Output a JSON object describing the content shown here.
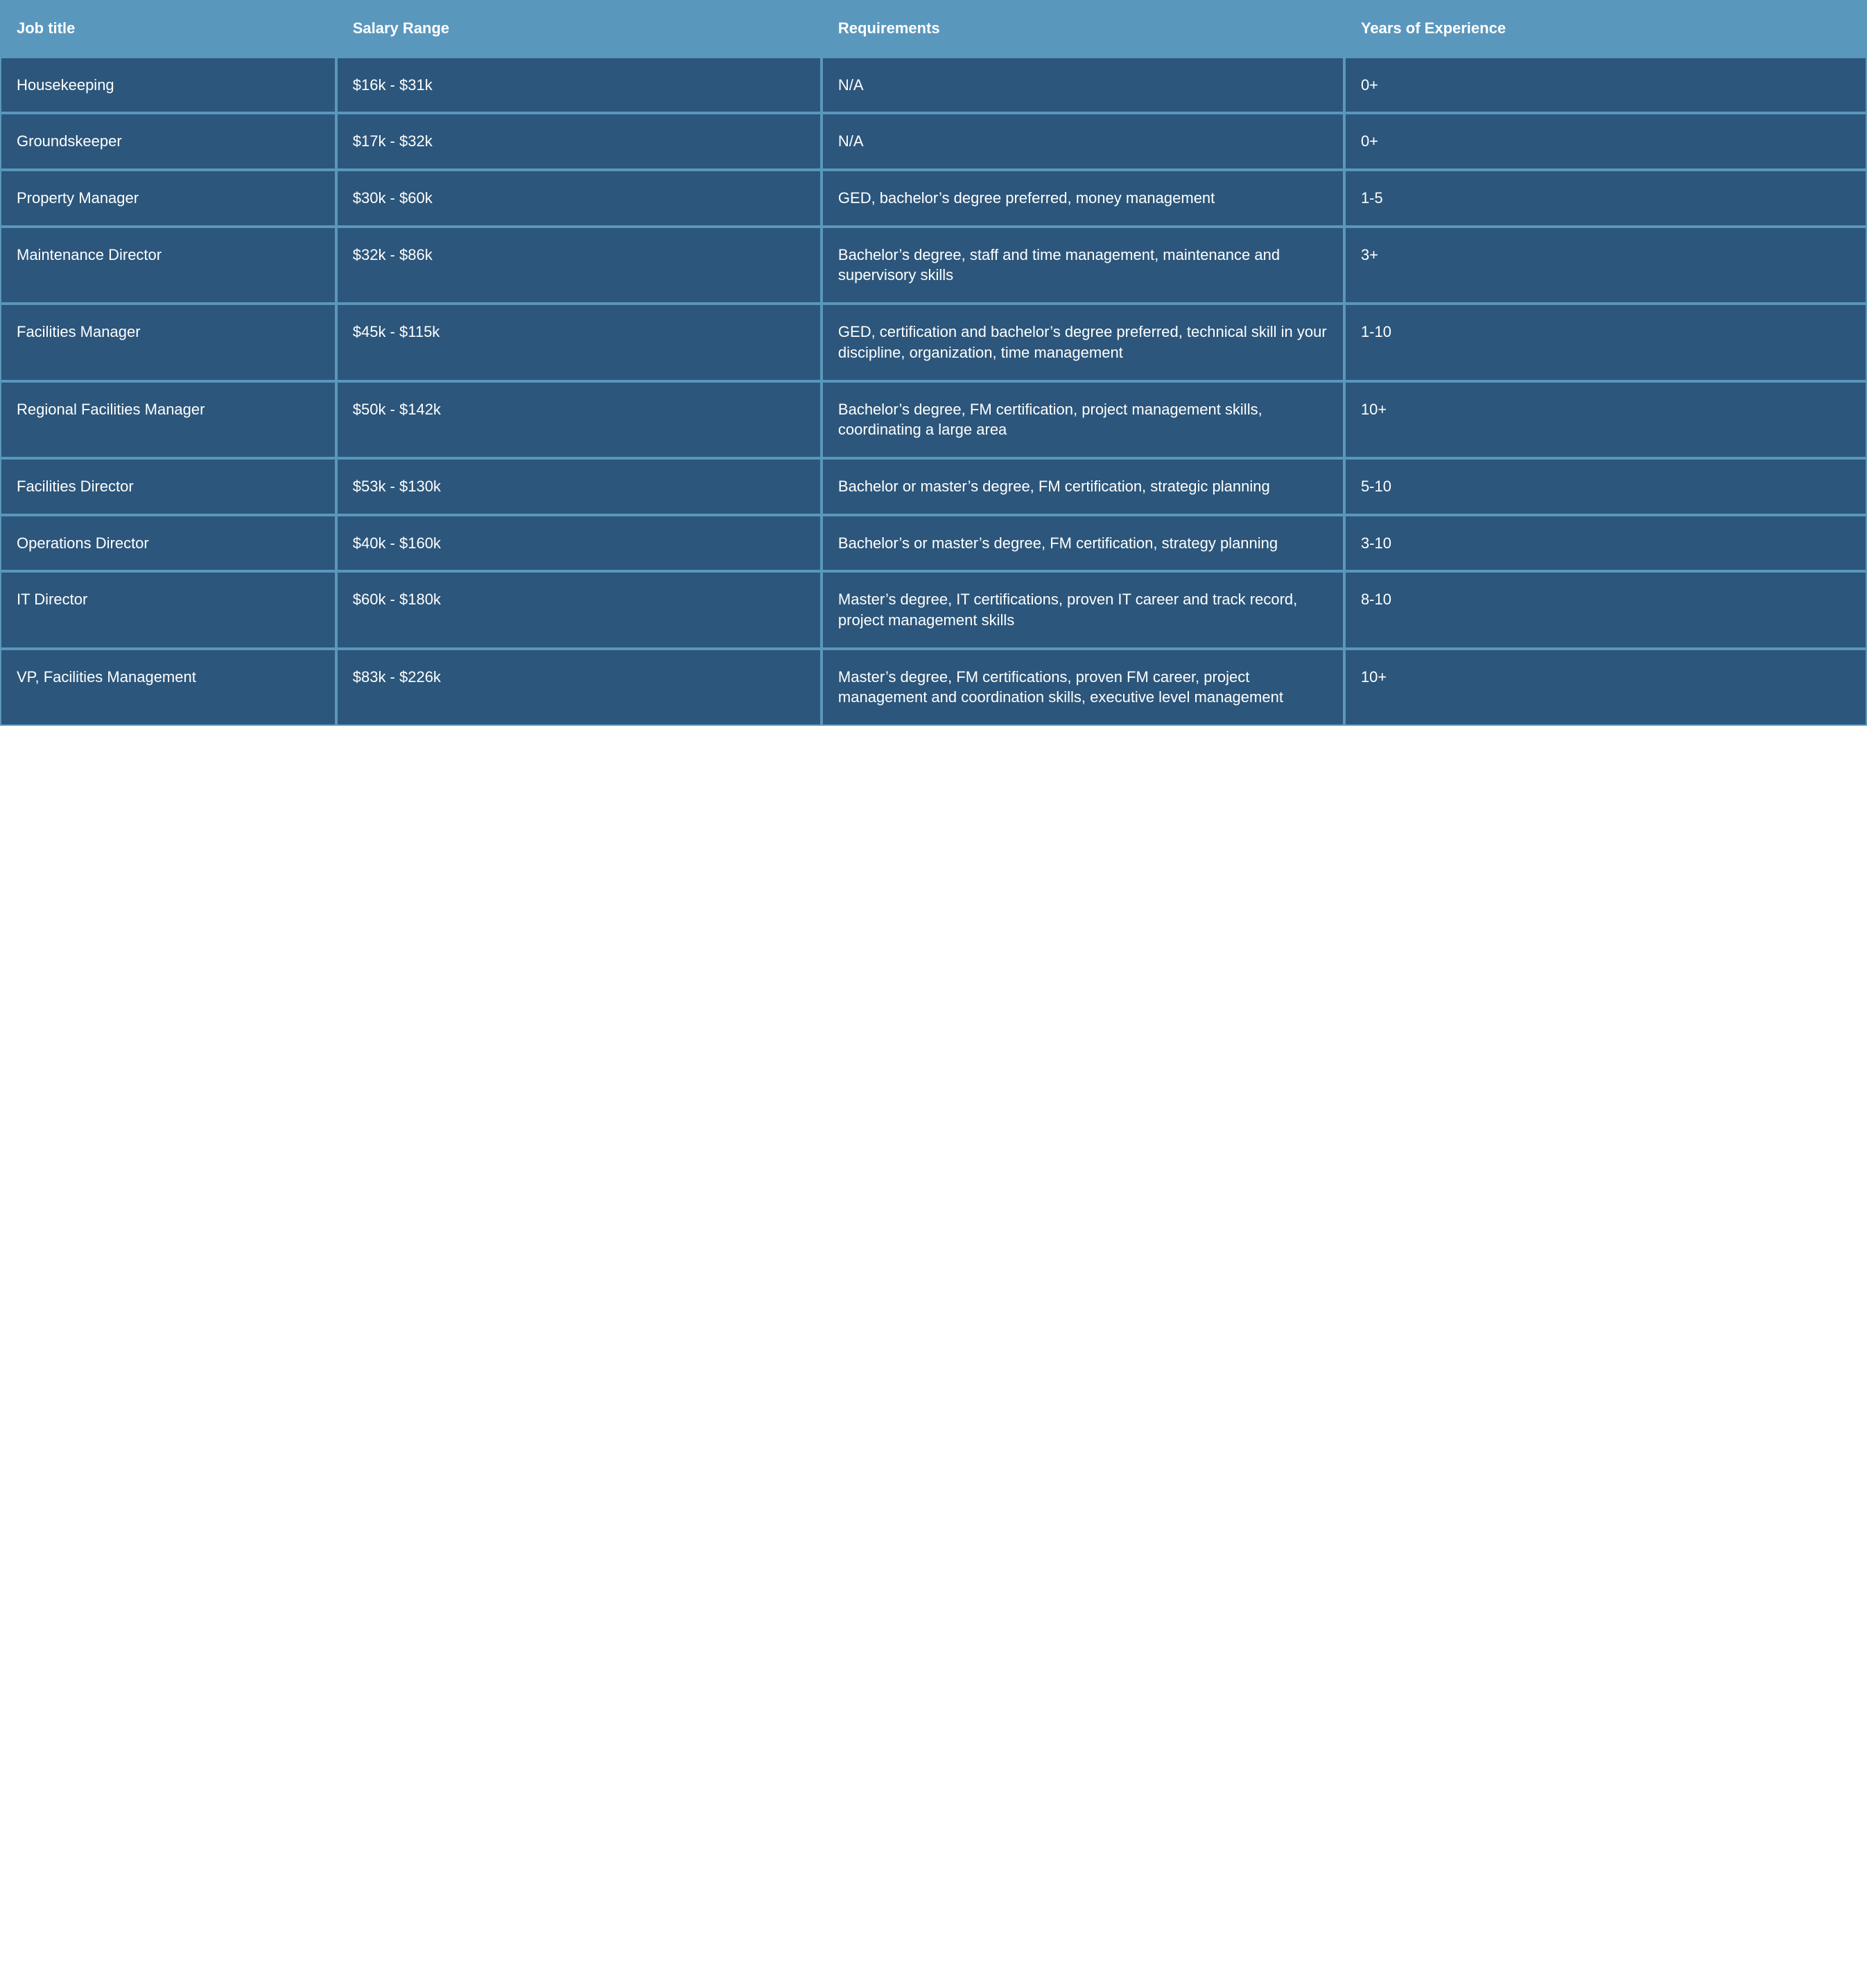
{
  "table": {
    "header_bg": "#5a97bd",
    "header_text_color": "#ffffff",
    "row_bg": "#2c567b",
    "row_text_color": "#ffffff",
    "border_color": "#5a97bd",
    "column_widths": [
      "18%",
      "26%",
      "28%",
      "28%"
    ],
    "columns": [
      "Job title",
      "Salary Range",
      "Requirements",
      "Years of Experience"
    ],
    "rows": [
      {
        "job_title": "Housekeeping",
        "salary_range": "$16k - $31k",
        "requirements": "N/A",
        "years": "0+"
      },
      {
        "job_title": "Groundskeeper",
        "salary_range": "$17k - $32k",
        "requirements": "N/A",
        "years": "0+"
      },
      {
        "job_title": "Property Manager",
        "salary_range": "$30k - $60k",
        "requirements": "GED, bachelor’s degree preferred, money management",
        "years": "1-5"
      },
      {
        "job_title": "Maintenance Director",
        "salary_range": "$32k - $86k",
        "requirements": "Bachelor’s degree, staff and time management, maintenance and supervisory skills",
        "years": "3+"
      },
      {
        "job_title": "Facilities Manager",
        "salary_range": "$45k - $115k",
        "requirements": "GED, certification and bachelor’s degree preferred, technical skill in your discipline, organization, time management",
        "years": "1-10"
      },
      {
        "job_title": "Regional Facilities Manager",
        "salary_range": "$50k - $142k",
        "requirements": "Bachelor’s degree, FM certification,  project management skills, coordinating a large area",
        "years": "10+"
      },
      {
        "job_title": "Facilities Director",
        "salary_range": "$53k - $130k",
        "requirements": "Bachelor or master’s degree, FM certification, strategic planning",
        "years": "5-10"
      },
      {
        "job_title": "Operations Director",
        "salary_range": "$40k - $160k",
        "requirements": "Bachelor’s or master’s degree, FM certification, strategy planning",
        "years": "3-10"
      },
      {
        "job_title": "IT Director",
        "salary_range": "$60k - $180k",
        "requirements": "Master’s degree, IT certifications, proven IT career and track record, project management skills",
        "years": "8-10"
      },
      {
        "job_title": "VP, Facilities Management",
        "salary_range": "$83k - $226k",
        "requirements": "Master’s degree, FM certifications, proven FM career, project management and coordination skills, executive level management",
        "years": "10+"
      }
    ]
  }
}
